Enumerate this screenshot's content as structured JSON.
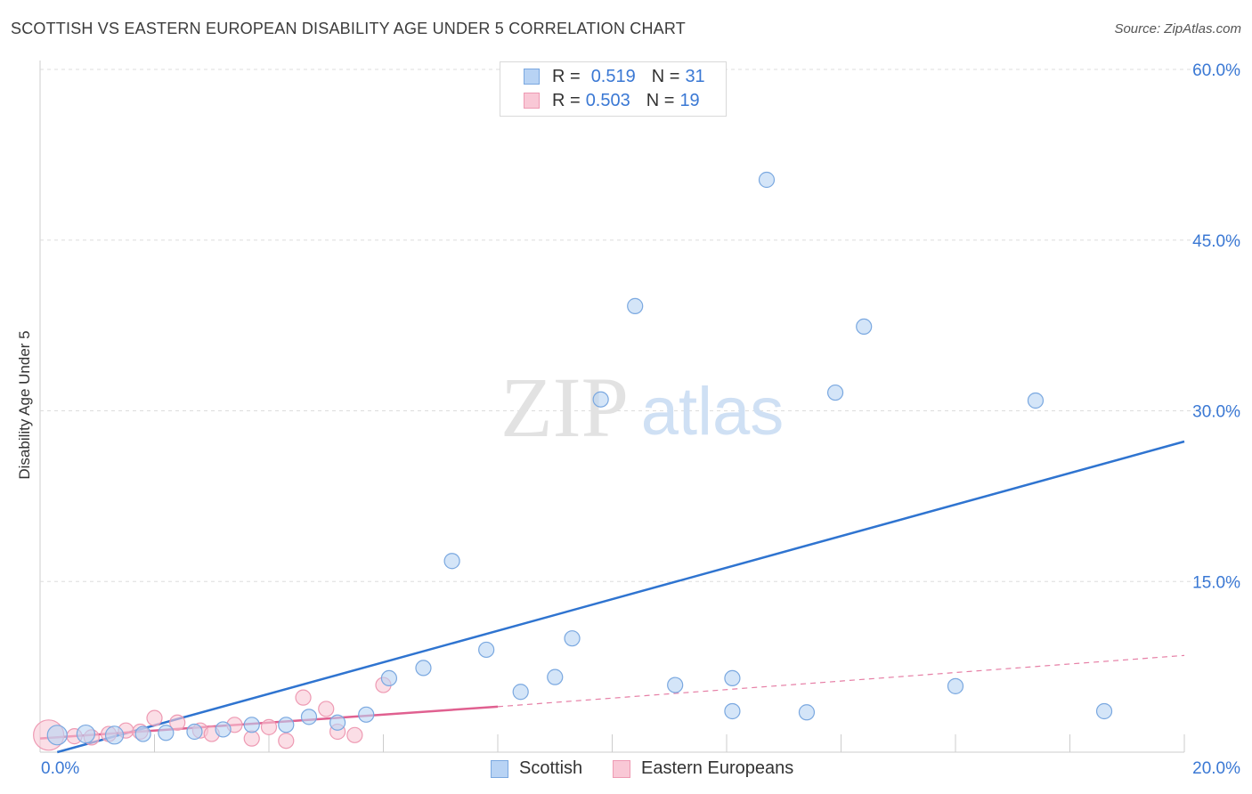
{
  "header": {
    "title": "SCOTTISH VS EASTERN EUROPEAN DISABILITY AGE UNDER 5 CORRELATION CHART",
    "source": "Source: ZipAtlas.com"
  },
  "watermark": {
    "zip": "ZIP",
    "atlas": "atlas"
  },
  "legend_top": {
    "rows": [
      {
        "r_label": "R =",
        "r_value": "0.519",
        "n_label": "N =",
        "n_value": "31"
      },
      {
        "r_label": "R =",
        "r_value": "0.503",
        "n_label": "N =",
        "n_value": "19"
      }
    ]
  },
  "legend_bottom": {
    "series1": "Scottish",
    "series2": "Eastern Europeans"
  },
  "colors": {
    "blue_fill": "#b8d3f4",
    "blue_stroke": "#7aa8e0",
    "blue_line": "#2f74d0",
    "pink_fill": "#f9c8d6",
    "pink_stroke": "#ee9ab3",
    "pink_line": "#e06090",
    "tick_text": "#3a78d4",
    "grid": "#dddddd"
  },
  "chart_data": {
    "type": "scatter",
    "title": "SCOTTISH VS EASTERN EUROPEAN DISABILITY AGE UNDER 5 CORRELATION CHART",
    "xlabel": "",
    "ylabel": "Disability Age Under 5",
    "xlim": [
      0,
      20
    ],
    "ylim": [
      0,
      60
    ],
    "x_tick_labels": [
      "0.0%",
      "20.0%"
    ],
    "y_ticks": [
      15,
      30,
      45,
      60
    ],
    "y_tick_labels": [
      "15.0%",
      "30.0%",
      "45.0%",
      "60.0%"
    ],
    "series": [
      {
        "name": "Scottish",
        "points": [
          [
            0.3,
            1.5
          ],
          [
            0.8,
            1.6
          ],
          [
            1.3,
            1.5
          ],
          [
            1.8,
            1.6
          ],
          [
            2.2,
            1.7
          ],
          [
            2.7,
            1.8
          ],
          [
            3.2,
            2.0
          ],
          [
            3.7,
            2.4
          ],
          [
            4.3,
            2.4
          ],
          [
            4.7,
            3.1
          ],
          [
            5.2,
            2.6
          ],
          [
            5.7,
            3.3
          ],
          [
            6.1,
            6.5
          ],
          [
            6.7,
            7.4
          ],
          [
            7.2,
            16.8
          ],
          [
            7.8,
            9.0
          ],
          [
            8.4,
            5.3
          ],
          [
            9.0,
            6.6
          ],
          [
            9.3,
            10.0
          ],
          [
            9.8,
            31.0
          ],
          [
            10.4,
            39.2
          ],
          [
            11.1,
            5.9
          ],
          [
            12.1,
            6.5
          ],
          [
            12.1,
            3.6
          ],
          [
            12.7,
            50.3
          ],
          [
            13.4,
            3.5
          ],
          [
            13.9,
            31.6
          ],
          [
            14.4,
            37.4
          ],
          [
            16.0,
            5.8
          ],
          [
            17.4,
            30.9
          ],
          [
            18.6,
            3.6
          ]
        ],
        "trend": {
          "x": [
            0.3,
            20.0
          ],
          "y": [
            0.0,
            27.3
          ]
        }
      },
      {
        "name": "Eastern Europeans",
        "points": [
          [
            0.15,
            1.5
          ],
          [
            0.6,
            1.4
          ],
          [
            0.9,
            1.3
          ],
          [
            1.2,
            1.6
          ],
          [
            1.5,
            1.9
          ],
          [
            1.75,
            1.8
          ],
          [
            2.0,
            3.0
          ],
          [
            2.4,
            2.6
          ],
          [
            2.8,
            1.9
          ],
          [
            3.0,
            1.6
          ],
          [
            3.4,
            2.4
          ],
          [
            3.7,
            1.2
          ],
          [
            4.0,
            2.2
          ],
          [
            4.3,
            1.0
          ],
          [
            4.6,
            4.8
          ],
          [
            5.0,
            3.8
          ],
          [
            5.2,
            1.8
          ],
          [
            5.5,
            1.5
          ],
          [
            6.0,
            5.9
          ]
        ],
        "trend": {
          "x": [
            0.0,
            8.0
          ],
          "y": [
            1.2,
            4.0
          ]
        },
        "trend_dashed": {
          "x": [
            8.0,
            20.0
          ],
          "y": [
            4.0,
            8.5
          ]
        }
      }
    ]
  }
}
